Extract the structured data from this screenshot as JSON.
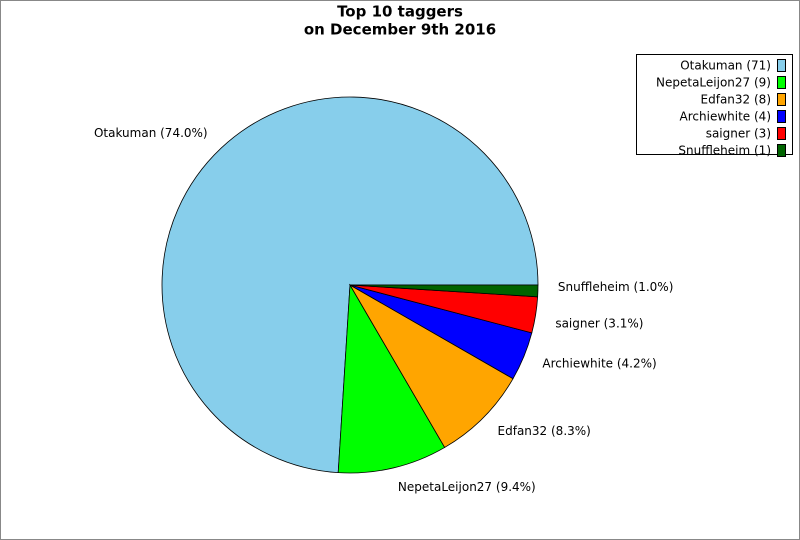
{
  "chart_data": {
    "type": "pie",
    "title": "Top 10 taggers",
    "subtitle": "on December 9th 2016",
    "categories": [
      "Otakuman",
      "NepetaLeijon27",
      "Edfan32",
      "Archiewhite",
      "saigner",
      "Snuffleheim"
    ],
    "values": [
      74.0,
      9.4,
      8.3,
      4.2,
      3.1,
      1.0
    ],
    "value_labels": [
      "Otakuman (74.0%)",
      "NepetaLeijon27 (9.4%)",
      "Edfan32 (8.3%)",
      "Archiewhite (4.2%)",
      "saigner (3.1%)",
      "Snuffleheim (1.0%)"
    ],
    "legend_labels": [
      "Otakuman (71)",
      "NepetaLeijon27 (9)",
      "Edfan32 (8)",
      "Archiewhite (4)",
      "saigner (3)",
      "Snuffleheim (1)"
    ],
    "colors": [
      "#87ceeb",
      "#00ff00",
      "#ffa500",
      "#0000ff",
      "#ff0000",
      "#006400"
    ],
    "legend_position": "upper-right"
  }
}
